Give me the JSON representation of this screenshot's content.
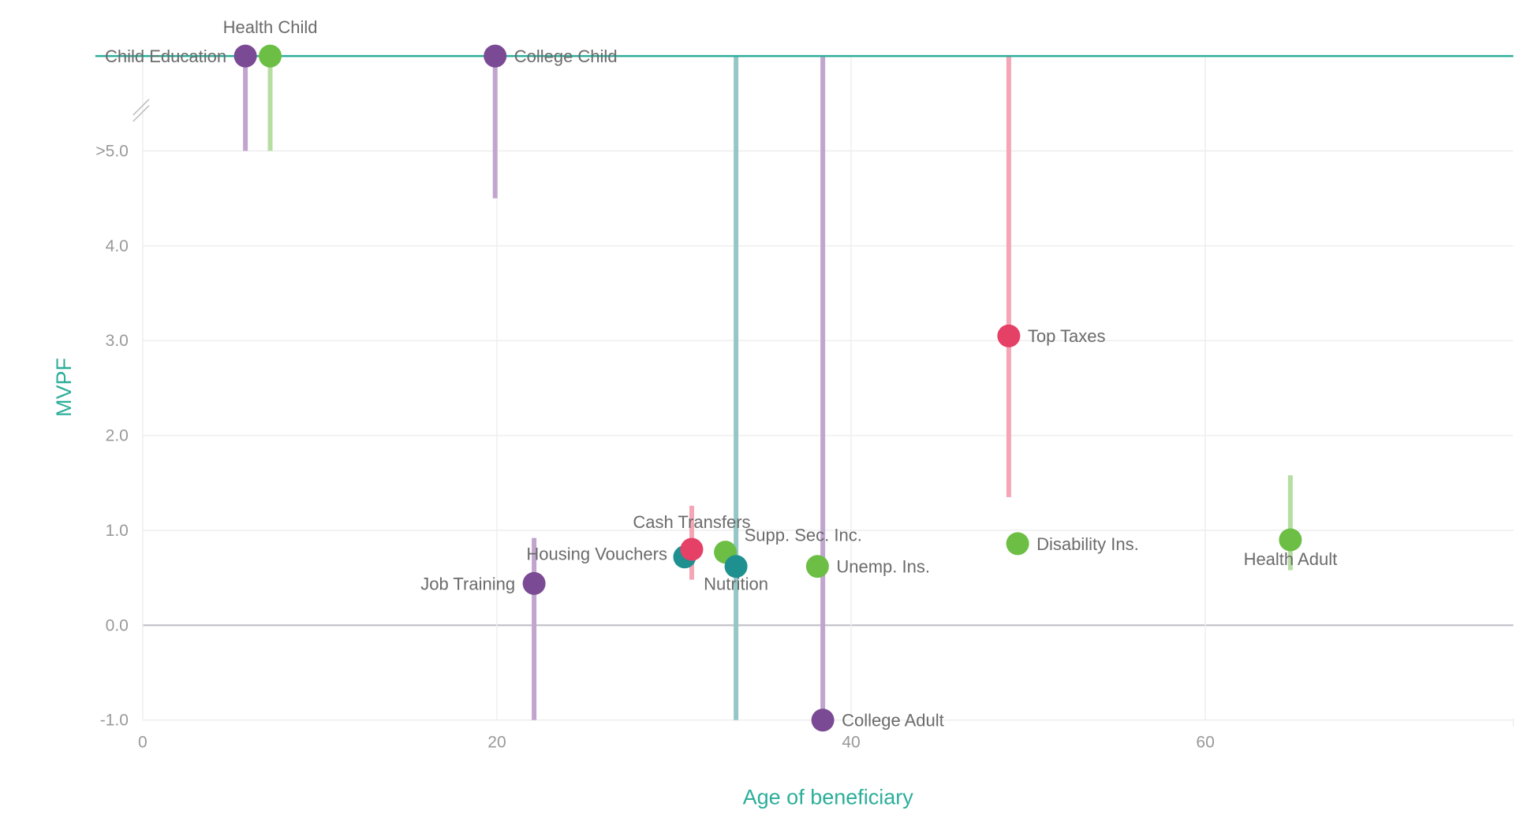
{
  "chart_data": {
    "type": "scatter",
    "title": "",
    "xlabel": "Age of beneficiary",
    "ylabel": "MVPF",
    "xlim": [
      0,
      77.5
    ],
    "ylim": [
      -1.0,
      5.0
    ],
    "x_ticks": [
      0,
      20,
      40,
      60
    ],
    "x_tick_labels": [
      "0",
      "20",
      "40",
      "60"
    ],
    "y_ticks": [
      -1.0,
      0.0,
      1.0,
      2.0,
      3.0,
      4.0,
      5.0
    ],
    "y_tick_labels": [
      "-1.0",
      "0.0",
      "1.0",
      "2.0",
      "3.0",
      "4.0",
      ">5.0"
    ],
    "infinity_row": "Values above 5.0 (infinite MVPF) plotted on top line beyond axis break",
    "grid": true,
    "legend": "none",
    "colors": {
      "Education/Training": "#7b4a94",
      "Health/Social Insurance": "#6cbe45",
      "In-kind Transfers": "#1f9090",
      "Cash/Taxes": "#e54065",
      "infinity_line": "#2bae9a",
      "axis_title": "#2bae9a"
    },
    "points": [
      {
        "label": "Child Education",
        "group": "Education/Training",
        "age": 5.8,
        "mvpf": "inf",
        "ci_low": 5.0,
        "ci_high": "inf",
        "label_pos": "left"
      },
      {
        "label": "Health Child",
        "group": "Health/Social Insurance",
        "age": 7.2,
        "mvpf": "inf",
        "ci_low": 5.0,
        "ci_high": "inf",
        "label_pos": "top"
      },
      {
        "label": "College Child",
        "group": "Education/Training",
        "age": 19.9,
        "mvpf": "inf",
        "ci_low": 4.5,
        "ci_high": "inf",
        "label_pos": "right"
      },
      {
        "label": "Job Training",
        "group": "Education/Training",
        "age": 22.1,
        "mvpf": 0.44,
        "ci_low": -1.0,
        "ci_high": 0.92,
        "label_pos": "left"
      },
      {
        "label": "Housing Vouchers",
        "group": "In-kind Transfers",
        "age": 30.6,
        "mvpf": 0.72,
        "ci_low": null,
        "ci_high": null,
        "label_pos": "left"
      },
      {
        "label": "Cash Transfers",
        "group": "Cash/Taxes",
        "age": 31.0,
        "mvpf": 0.8,
        "ci_low": 0.48,
        "ci_high": 1.26,
        "label_pos": "top"
      },
      {
        "label": "Supp. Sec. Inc.",
        "group": "Health/Social Insurance",
        "age": 32.9,
        "mvpf": 0.77,
        "ci_low": null,
        "ci_high": null,
        "label_pos": "top-right"
      },
      {
        "label": "Nutrition",
        "group": "In-kind Transfers",
        "age": 33.5,
        "mvpf": 0.62,
        "ci_low": -1.0,
        "ci_high": "inf",
        "label_pos": "bottom"
      },
      {
        "label": "Unemp. Ins.",
        "group": "Health/Social Insurance",
        "age": 38.1,
        "mvpf": 0.62,
        "ci_low": null,
        "ci_high": null,
        "label_pos": "right"
      },
      {
        "label": "College Adult",
        "group": "Education/Training",
        "age": 38.4,
        "mvpf": -1.0,
        "ci_low": -1.0,
        "ci_high": "inf",
        "label_pos": "right"
      },
      {
        "label": "Top Taxes",
        "group": "Cash/Taxes",
        "age": 48.9,
        "mvpf": 3.05,
        "ci_low": 1.35,
        "ci_high": "inf",
        "label_pos": "right"
      },
      {
        "label": "Disability Ins.",
        "group": "Health/Social Insurance",
        "age": 49.4,
        "mvpf": 0.86,
        "ci_low": null,
        "ci_high": null,
        "label_pos": "right"
      },
      {
        "label": "Health Adult",
        "group": "Health/Social Insurance",
        "age": 64.8,
        "mvpf": 0.9,
        "ci_low": 0.58,
        "ci_high": 1.58,
        "label_pos": "bottom"
      }
    ]
  }
}
